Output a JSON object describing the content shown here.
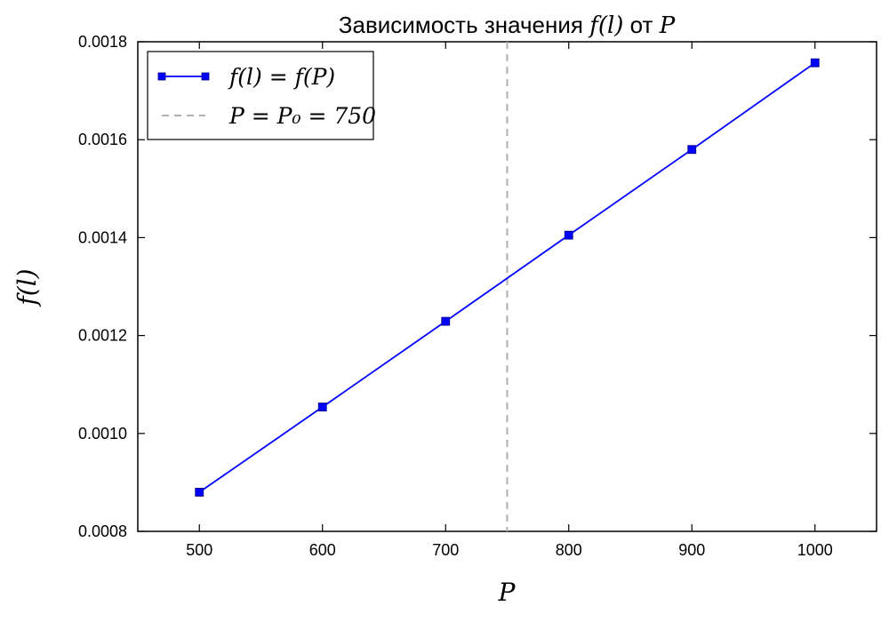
{
  "chart_data": {
    "type": "line",
    "title": {
      "text": "Зависимость значения ",
      "math_1": "f(l)",
      "connector": " от ",
      "math_2": "P"
    },
    "xlabel": "P",
    "ylabel": "f(l)",
    "xlim": [
      450,
      1050
    ],
    "ylim": [
      0.0008,
      0.0018
    ],
    "x_ticks": [
      500,
      600,
      700,
      800,
      900,
      1000
    ],
    "x_tick_labels": [
      "500",
      "600",
      "700",
      "800",
      "900",
      "1000"
    ],
    "y_ticks": [
      0.0008,
      0.001,
      0.0012,
      0.0014,
      0.0016,
      0.0018
    ],
    "y_tick_labels": [
      "0.0008",
      "0.0010",
      "0.0012",
      "0.0014",
      "0.0016",
      "0.0018"
    ],
    "grid": false,
    "legend_position": "top-left",
    "series": [
      {
        "name": "f(l) = f(P)",
        "x": [
          500,
          600,
          700,
          800,
          900,
          1000
        ],
        "y": [
          0.00088,
          0.001054,
          0.001229,
          0.001405,
          0.00158,
          0.001757
        ],
        "color": "#0000ff",
        "marker": "square",
        "line_style": "solid"
      }
    ],
    "reference_lines": [
      {
        "name": "P = P₀ = 750",
        "orientation": "vertical",
        "x": 750,
        "color": "#b0b0b0",
        "line_style": "dashed"
      }
    ]
  }
}
